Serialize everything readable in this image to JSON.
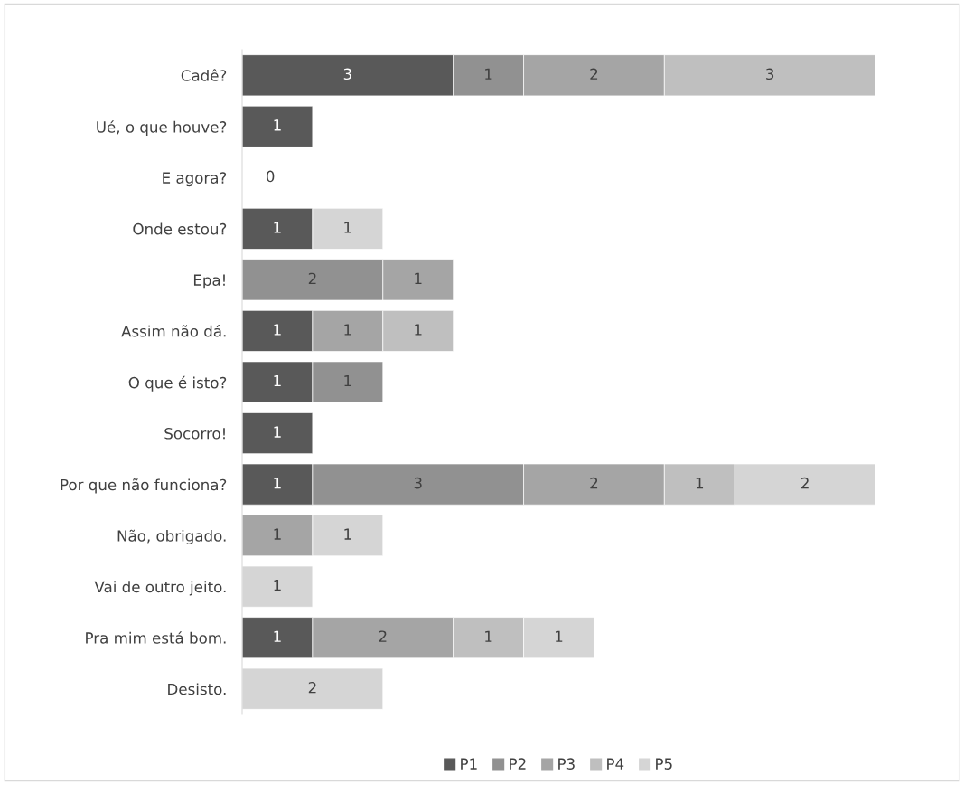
{
  "chart_data": {
    "type": "bar",
    "orientation": "horizontal",
    "stacked": true,
    "data_labels": true,
    "legend": "bottom",
    "grid": false,
    "tick_labels": "y",
    "xlim": [
      0,
      9
    ],
    "categories": [
      "Cadê?",
      "Ué, o que houve?",
      "E agora?",
      "Onde estou?",
      "Epa!",
      "Assim não dá.",
      "O que é isto?",
      "Socorro!",
      "Por que não funciona?",
      "Não, obrigado.",
      "Vai de outro jeito.",
      "Pra mim está bom.",
      "Desisto."
    ],
    "series": [
      {
        "name": "P1",
        "color": "#595959",
        "values": [
          3,
          1,
          0,
          1,
          null,
          1,
          1,
          1,
          1,
          null,
          null,
          1,
          null
        ]
      },
      {
        "name": "P2",
        "color": "#919191",
        "values": [
          1,
          null,
          null,
          null,
          2,
          null,
          1,
          null,
          3,
          null,
          null,
          null,
          null
        ]
      },
      {
        "name": "P3",
        "color": "#a5a5a5",
        "values": [
          2,
          null,
          null,
          null,
          1,
          1,
          null,
          null,
          2,
          1,
          null,
          2,
          null
        ]
      },
      {
        "name": "P4",
        "color": "#bfbfbf",
        "values": [
          3,
          null,
          null,
          null,
          null,
          1,
          null,
          null,
          1,
          null,
          null,
          1,
          null
        ]
      },
      {
        "name": "P5",
        "color": "#d5d5d5",
        "values": [
          null,
          null,
          null,
          1,
          null,
          null,
          null,
          null,
          2,
          1,
          1,
          1,
          2
        ]
      }
    ]
  }
}
